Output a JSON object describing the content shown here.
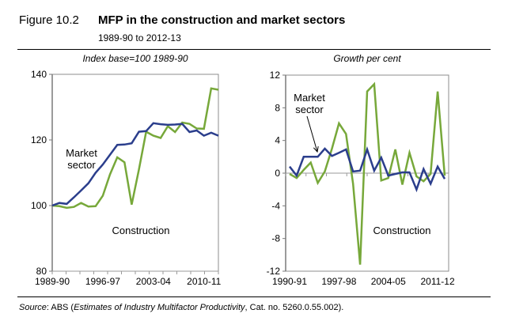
{
  "figure": {
    "label": "Figure 10.2",
    "title": "MFP in the construction and market sectors",
    "subtitle": "1989-90 to 2012-13",
    "source_prefix": "Source",
    "source_mid": ": ABS (",
    "source_italic": "Estimates of Industry Multifactor Productivity",
    "source_suffix": ", Cat. no. 5260.0.55.002)."
  },
  "colors": {
    "market": "#2B3E8C",
    "construction": "#77A83A",
    "axis": "#8c8c8c"
  },
  "chart_data": [
    {
      "type": "line",
      "title": "Index base=100 1989-90",
      "xlabel": "",
      "ylabel": "",
      "ylim": [
        80,
        140
      ],
      "yticks": [
        80,
        100,
        120,
        140
      ],
      "x": [
        "1989-90",
        "1990-91",
        "1991-92",
        "1992-93",
        "1993-94",
        "1994-95",
        "1995-96",
        "1996-97",
        "1997-98",
        "1998-99",
        "1999-00",
        "2000-01",
        "2001-02",
        "2002-03",
        "2003-04",
        "2004-05",
        "2005-06",
        "2006-07",
        "2007-08",
        "2008-09",
        "2009-10",
        "2010-11",
        "2011-12",
        "2012-13"
      ],
      "xtick_labels": [
        "1989-90",
        "1996-97",
        "2003-04",
        "2010-11"
      ],
      "series": [
        {
          "name": "Market sector",
          "label_lines": [
            "Market",
            "sector"
          ],
          "values": [
            100,
            100.8,
            100.5,
            102.5,
            104.6,
            106.8,
            110,
            112.5,
            115.5,
            118.5,
            118.6,
            119,
            122.5,
            122.7,
            125.1,
            124.8,
            124.6,
            124.7,
            124.9,
            122.4,
            122.9,
            121.3,
            122.2,
            121.3
          ]
        },
        {
          "name": "Construction",
          "label_lines": [
            "Construction"
          ],
          "values": [
            100,
            99.8,
            99.3,
            99.6,
            100.8,
            99.7,
            99.8,
            103,
            109.5,
            114.7,
            113.2,
            100.3,
            111,
            122.5,
            121.3,
            120.6,
            124.2,
            122.4,
            125.3,
            124.9,
            123.5,
            123.4,
            135.7,
            135.3
          ]
        }
      ]
    },
    {
      "type": "line",
      "title": "Growth per cent",
      "xlabel": "",
      "ylabel": "",
      "ylim": [
        -12,
        12
      ],
      "yticks": [
        -12,
        -8,
        -4,
        0,
        4,
        8,
        12
      ],
      "x": [
        "1990-91",
        "1991-92",
        "1992-93",
        "1993-94",
        "1994-95",
        "1995-96",
        "1996-97",
        "1997-98",
        "1998-99",
        "1999-00",
        "2000-01",
        "2001-02",
        "2002-03",
        "2003-04",
        "2004-05",
        "2005-06",
        "2006-07",
        "2007-08",
        "2008-09",
        "2009-10",
        "2010-11",
        "2011-12",
        "2012-13"
      ],
      "xtick_labels": [
        "1990-91",
        "1997-98",
        "2004-05",
        "2011-12"
      ],
      "series": [
        {
          "name": "Market sector",
          "label_lines": [
            "Market",
            "sector"
          ],
          "values": [
            0.8,
            -0.3,
            2.0,
            2.0,
            2.0,
            3.0,
            2.1,
            2.5,
            2.9,
            0.2,
            0.3,
            2.9,
            0.3,
            1.9,
            -0.3,
            -0.1,
            0.1,
            0.1,
            -2.0,
            0.5,
            -1.3,
            0.8,
            -0.7
          ]
        },
        {
          "name": "Construction",
          "label_lines": [
            "Construction"
          ],
          "values": [
            -0.1,
            -0.6,
            0.4,
            1.3,
            -1.2,
            0.2,
            3.0,
            6.1,
            4.8,
            -1.3,
            -11.2,
            10.0,
            10.9,
            -0.9,
            -0.6,
            2.9,
            -1.4,
            2.5,
            -0.4,
            -1.0,
            -0.1,
            10.0,
            -0.3
          ]
        }
      ]
    }
  ]
}
